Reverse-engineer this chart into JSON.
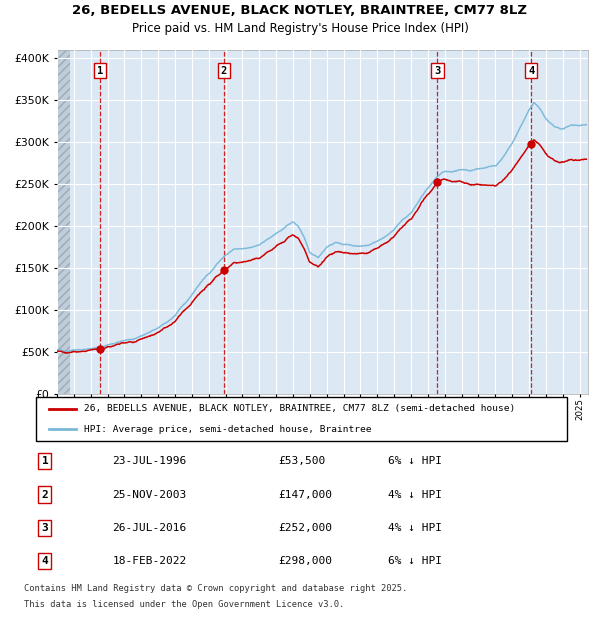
{
  "title_line1": "26, BEDELLS AVENUE, BLACK NOTLEY, BRAINTREE, CM77 8LZ",
  "title_line2": "Price paid vs. HM Land Registry's House Price Index (HPI)",
  "legend_red": "26, BEDELLS AVENUE, BLACK NOTLEY, BRAINTREE, CM77 8LZ (semi-detached house)",
  "legend_blue": "HPI: Average price, semi-detached house, Braintree",
  "footnote_line1": "Contains HM Land Registry data © Crown copyright and database right 2025.",
  "footnote_line2": "This data is licensed under the Open Government Licence v3.0.",
  "sales": [
    {
      "num": 1,
      "date": "23-JUL-1996",
      "year": 1996.55,
      "price": 53500,
      "label": "6% ↓ HPI"
    },
    {
      "num": 2,
      "date": "25-NOV-2003",
      "year": 2003.9,
      "price": 147000,
      "label": "4% ↓ HPI"
    },
    {
      "num": 3,
      "date": "26-JUL-2016",
      "year": 2016.57,
      "price": 252000,
      "label": "4% ↓ HPI"
    },
    {
      "num": 4,
      "date": "18-FEB-2022",
      "year": 2022.13,
      "price": 298000,
      "label": "6% ↓ HPI"
    }
  ],
  "table_rows": [
    [
      "1",
      "23-JUL-1996",
      "£53,500",
      "6% ↓ HPI"
    ],
    [
      "2",
      "25-NOV-2003",
      "£147,000",
      "4% ↓ HPI"
    ],
    [
      "3",
      "26-JUL-2016",
      "£252,000",
      "4% ↓ HPI"
    ],
    [
      "4",
      "18-FEB-2022",
      "£298,000",
      "6% ↓ HPI"
    ]
  ],
  "ylim": [
    0,
    410000
  ],
  "xlim_start": 1994.0,
  "xlim_end": 2025.5,
  "bg_color": "#dce9f5",
  "red_color": "#cc0000",
  "blue_color": "#7ab8d9",
  "grid_color": "#ffffff",
  "hatch_end": 1994.75
}
